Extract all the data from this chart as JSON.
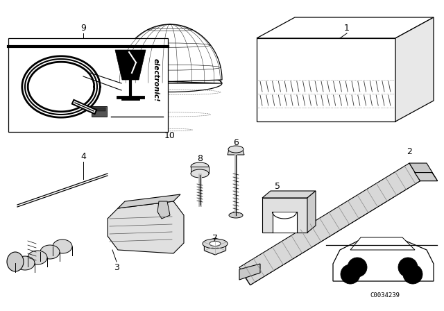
{
  "bg_color": "#ffffff",
  "line_color": "#000000",
  "part_number_fontsize": 9,
  "catalog_number": "C0034239",
  "catalog_number_fontsize": 6.5
}
